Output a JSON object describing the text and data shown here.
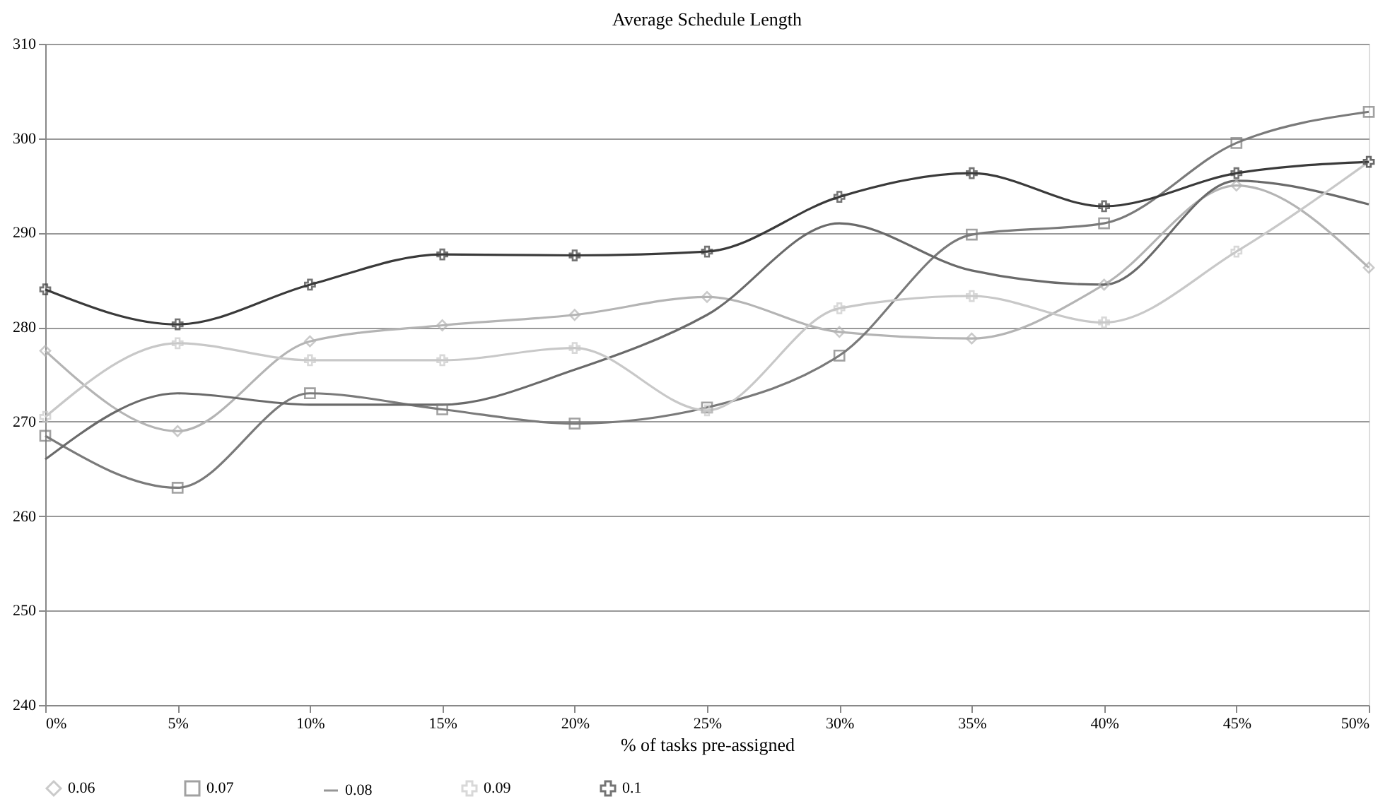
{
  "chart_data": {
    "type": "line",
    "title": "Average Schedule Length",
    "xlabel": "% of tasks pre-assigned",
    "categories": [
      "0%",
      "5%",
      "10%",
      "15%",
      "20%",
      "25%",
      "30%",
      "35%",
      "40%",
      "45%",
      "50%"
    ],
    "series": [
      {
        "name": "0.06",
        "color": "#b4b4b4",
        "marker": "diamond",
        "values": [
          277.5,
          269,
          278.5,
          280.2,
          281.3,
          283.2,
          279.5,
          278.8,
          284.5,
          295,
          286.3
        ]
      },
      {
        "name": "0.07",
        "color": "#7a7a7a",
        "marker": "square",
        "values": [
          268.5,
          263,
          273,
          271.3,
          269.8,
          271.5,
          277,
          289.8,
          291,
          299.5,
          302.8
        ]
      },
      {
        "name": "0.08",
        "color": "#6a6a6a",
        "marker": "none",
        "values": [
          266,
          273,
          271.8,
          271.8,
          275.5,
          281.3,
          291,
          286,
          284.5,
          295.5,
          293
        ]
      },
      {
        "name": "0.09",
        "color": "#c8c8c8",
        "marker": "cross",
        "values": [
          270.5,
          278.3,
          276.5,
          276.5,
          277.8,
          271.2,
          282,
          283.3,
          280.5,
          288,
          297.5
        ]
      },
      {
        "name": "0.1",
        "color": "#3a3a3a",
        "marker": "cross",
        "values": [
          284,
          280.3,
          284.5,
          287.7,
          287.6,
          288,
          293.8,
          296.3,
          292.8,
          296.3,
          297.5
        ]
      }
    ],
    "ylim": [
      240,
      310
    ],
    "yticks": [
      240,
      250,
      260,
      270,
      280,
      290,
      300,
      310
    ],
    "grid": "y",
    "legend": "bottom"
  }
}
